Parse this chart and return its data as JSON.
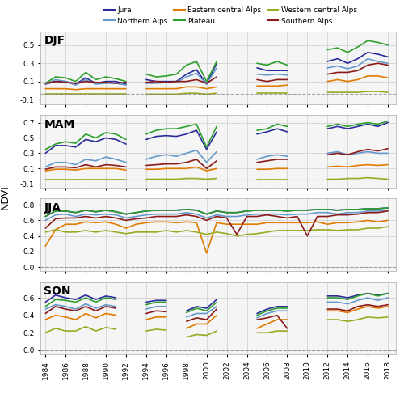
{
  "years": [
    1984,
    1985,
    1986,
    1987,
    1988,
    1989,
    1990,
    1991,
    1992,
    1993,
    1994,
    1995,
    1996,
    1997,
    1998,
    1999,
    2000,
    2001,
    2002,
    2003,
    2004,
    2005,
    2006,
    2007,
    2008,
    2009,
    2010,
    2011,
    2012,
    2013,
    2014,
    2015,
    2016,
    2017,
    2018
  ],
  "colors": {
    "Jura": "#2b2b9b",
    "Northern Alps": "#6699cc",
    "Eastern central Alps": "#e07b00",
    "Plateau": "#2ca02c",
    "Western central Alps": "#9aaa22",
    "Southern Alps": "#8b1a1a"
  },
  "DJF": {
    "Jura": [
      0.07,
      0.1,
      0.1,
      0.07,
      0.14,
      0.08,
      0.1,
      0.1,
      0.07,
      null,
      0.12,
      0.1,
      0.1,
      0.1,
      0.18,
      0.23,
      0.07,
      0.3,
      null,
      null,
      null,
      0.25,
      0.22,
      0.22,
      0.22,
      null,
      0.25,
      null,
      0.32,
      0.35,
      0.3,
      0.35,
      0.42,
      0.4,
      0.37
    ],
    "Northern Alps": [
      0.07,
      0.12,
      0.1,
      0.06,
      0.12,
      0.07,
      0.08,
      0.08,
      0.06,
      null,
      0.08,
      0.08,
      0.09,
      0.09,
      0.15,
      0.19,
      0.07,
      0.25,
      null,
      null,
      null,
      0.18,
      0.17,
      0.18,
      0.17,
      null,
      0.2,
      null,
      0.25,
      0.27,
      0.24,
      0.27,
      0.35,
      0.32,
      0.3
    ],
    "Eastern central Alps": [
      0.02,
      0.02,
      0.02,
      0.01,
      0.02,
      0.02,
      0.02,
      0.02,
      0.02,
      null,
      0.02,
      0.02,
      0.02,
      0.02,
      0.04,
      0.04,
      0.02,
      0.04,
      null,
      null,
      null,
      0.05,
      0.05,
      0.05,
      0.06,
      null,
      0.08,
      null,
      0.1,
      0.12,
      0.1,
      0.12,
      0.16,
      0.16,
      0.14
    ],
    "Plateau": [
      0.08,
      0.15,
      0.14,
      0.1,
      0.2,
      0.12,
      0.15,
      0.13,
      0.1,
      null,
      0.18,
      0.15,
      0.16,
      0.18,
      0.28,
      0.32,
      0.1,
      0.32,
      null,
      null,
      null,
      0.3,
      0.28,
      0.32,
      0.28,
      null,
      0.38,
      null,
      0.45,
      0.47,
      0.42,
      0.48,
      0.55,
      0.53,
      0.5
    ],
    "Western central Alps": [
      -0.04,
      -0.04,
      -0.04,
      -0.04,
      -0.04,
      -0.04,
      -0.04,
      -0.04,
      -0.04,
      null,
      -0.04,
      -0.04,
      -0.04,
      -0.04,
      -0.03,
      -0.03,
      -0.04,
      -0.03,
      null,
      null,
      null,
      -0.03,
      -0.03,
      -0.03,
      -0.03,
      null,
      -0.03,
      null,
      -0.02,
      -0.02,
      -0.02,
      -0.02,
      -0.01,
      -0.01,
      -0.02
    ],
    "Southern Alps": [
      0.08,
      0.1,
      0.09,
      0.08,
      0.1,
      0.09,
      0.09,
      0.08,
      0.09,
      null,
      0.09,
      0.1,
      0.09,
      0.1,
      0.1,
      0.12,
      0.08,
      0.15,
      null,
      null,
      null,
      0.12,
      0.1,
      0.12,
      0.12,
      null,
      0.12,
      null,
      0.18,
      0.2,
      0.2,
      0.22,
      0.28,
      0.3,
      0.28
    ]
  },
  "MAM": {
    "Jura": [
      0.3,
      0.4,
      0.4,
      0.38,
      0.48,
      0.45,
      0.5,
      0.48,
      0.42,
      null,
      0.48,
      0.52,
      0.53,
      0.52,
      0.55,
      0.6,
      0.35,
      0.58,
      null,
      null,
      null,
      0.55,
      0.58,
      0.62,
      0.58,
      null,
      0.65,
      null,
      0.62,
      0.65,
      0.62,
      0.65,
      0.68,
      0.65,
      0.7
    ],
    "Northern Alps": [
      0.12,
      0.18,
      0.18,
      0.15,
      0.22,
      0.2,
      0.25,
      0.22,
      0.18,
      null,
      0.22,
      0.26,
      0.28,
      0.26,
      0.3,
      0.34,
      0.18,
      0.32,
      null,
      null,
      null,
      0.22,
      0.26,
      0.28,
      0.26,
      null,
      0.3,
      null,
      0.3,
      0.32,
      0.28,
      0.3,
      0.32,
      0.3,
      0.3
    ],
    "Eastern central Alps": [
      0.07,
      0.09,
      0.09,
      0.08,
      0.1,
      0.1,
      0.1,
      0.1,
      0.08,
      null,
      0.09,
      0.09,
      0.1,
      0.1,
      0.1,
      0.12,
      0.07,
      0.1,
      null,
      null,
      null,
      0.09,
      0.09,
      0.1,
      0.1,
      null,
      0.1,
      null,
      0.12,
      0.13,
      0.12,
      0.14,
      0.15,
      0.14,
      0.15
    ],
    "Plateau": [
      0.35,
      0.42,
      0.45,
      0.43,
      0.55,
      0.5,
      0.57,
      0.55,
      0.48,
      null,
      0.55,
      0.6,
      0.62,
      0.62,
      0.65,
      0.68,
      0.38,
      0.65,
      null,
      null,
      null,
      0.6,
      0.62,
      0.68,
      0.65,
      null,
      0.7,
      null,
      0.65,
      0.68,
      0.65,
      0.68,
      0.7,
      0.68,
      0.72
    ],
    "Western central Alps": [
      -0.04,
      -0.04,
      -0.04,
      -0.04,
      -0.04,
      -0.04,
      -0.04,
      -0.04,
      -0.04,
      null,
      -0.04,
      -0.04,
      -0.04,
      -0.04,
      -0.03,
      -0.03,
      -0.04,
      -0.03,
      null,
      null,
      null,
      -0.04,
      -0.04,
      -0.04,
      -0.04,
      null,
      -0.04,
      null,
      -0.04,
      -0.04,
      -0.03,
      -0.03,
      -0.02,
      -0.03,
      -0.04
    ],
    "Southern Alps": [
      0.09,
      0.12,
      0.12,
      0.11,
      0.15,
      0.12,
      0.15,
      0.14,
      0.12,
      null,
      0.14,
      0.15,
      0.16,
      0.16,
      0.18,
      0.22,
      0.1,
      0.2,
      null,
      null,
      null,
      0.18,
      0.2,
      0.22,
      0.22,
      null,
      0.28,
      null,
      0.28,
      0.3,
      0.28,
      0.32,
      0.35,
      0.33,
      0.36
    ]
  },
  "JJA": {
    "Jura": [
      0.65,
      0.72,
      0.72,
      0.7,
      0.73,
      0.71,
      0.73,
      0.71,
      0.68,
      0.7,
      0.72,
      0.73,
      0.73,
      0.73,
      0.74,
      0.73,
      0.68,
      0.72,
      0.7,
      0.7,
      0.72,
      0.73,
      0.73,
      0.73,
      0.72,
      0.73,
      0.73,
      0.74,
      0.74,
      0.73,
      0.74,
      0.74,
      0.75,
      0.75,
      0.76
    ],
    "Northern Alps": [
      0.6,
      0.67,
      0.68,
      0.65,
      0.68,
      0.67,
      0.68,
      0.67,
      0.63,
      0.65,
      0.67,
      0.68,
      0.68,
      0.68,
      0.7,
      0.68,
      0.63,
      0.67,
      0.65,
      0.65,
      0.67,
      0.68,
      0.68,
      0.68,
      0.67,
      0.68,
      0.68,
      0.7,
      0.7,
      0.68,
      0.7,
      0.7,
      0.72,
      0.72,
      0.73
    ],
    "Eastern central Alps": [
      0.27,
      0.48,
      0.55,
      0.55,
      0.58,
      0.57,
      0.58,
      0.55,
      0.5,
      0.55,
      0.57,
      0.58,
      0.58,
      0.57,
      0.58,
      0.57,
      0.18,
      0.57,
      0.55,
      0.55,
      0.55,
      0.55,
      0.57,
      0.57,
      0.57,
      0.57,
      0.57,
      0.58,
      0.55,
      0.57,
      0.57,
      0.58,
      0.6,
      0.58,
      0.6
    ],
    "Plateau": [
      0.65,
      0.72,
      0.72,
      0.7,
      0.73,
      0.71,
      0.73,
      0.71,
      0.68,
      0.7,
      0.72,
      0.73,
      0.73,
      0.73,
      0.74,
      0.73,
      0.68,
      0.72,
      0.7,
      0.7,
      0.72,
      0.73,
      0.73,
      0.73,
      0.72,
      0.73,
      0.73,
      0.74,
      0.74,
      0.73,
      0.74,
      0.74,
      0.75,
      0.75,
      0.76
    ],
    "Western central Alps": [
      0.45,
      0.48,
      0.45,
      0.45,
      0.47,
      0.45,
      0.47,
      0.45,
      0.43,
      0.45,
      0.45,
      0.45,
      0.47,
      0.45,
      0.47,
      0.45,
      0.42,
      0.45,
      0.43,
      0.4,
      0.42,
      0.43,
      0.45,
      0.47,
      0.47,
      0.47,
      0.47,
      0.48,
      0.48,
      0.47,
      0.48,
      0.48,
      0.5,
      0.5,
      0.52
    ],
    "Southern Alps": [
      0.5,
      0.62,
      0.63,
      0.63,
      0.65,
      0.63,
      0.65,
      0.63,
      0.6,
      0.62,
      0.63,
      0.65,
      0.65,
      0.65,
      0.67,
      0.65,
      0.6,
      0.65,
      0.63,
      0.42,
      0.65,
      0.65,
      0.67,
      0.65,
      0.63,
      0.65,
      0.4,
      0.65,
      0.65,
      0.67,
      0.67,
      0.68,
      0.7,
      0.7,
      0.72
    ]
  },
  "SON": {
    "Jura": [
      0.55,
      0.63,
      0.6,
      0.58,
      0.63,
      0.58,
      0.62,
      0.6,
      null,
      null,
      0.55,
      0.57,
      0.57,
      null,
      0.45,
      0.5,
      0.48,
      0.58,
      null,
      null,
      null,
      0.42,
      0.47,
      0.5,
      0.5,
      null,
      0.57,
      null,
      0.62,
      0.62,
      0.6,
      0.63,
      0.65,
      0.63,
      0.65
    ],
    "Northern Alps": [
      0.47,
      0.52,
      0.5,
      0.47,
      0.53,
      0.48,
      0.52,
      0.5,
      null,
      null,
      0.47,
      0.5,
      0.5,
      null,
      0.38,
      0.42,
      0.42,
      0.5,
      null,
      null,
      null,
      0.37,
      0.42,
      0.45,
      0.45,
      null,
      0.5,
      null,
      0.55,
      0.55,
      0.53,
      0.57,
      0.6,
      0.57,
      0.6
    ],
    "Eastern central Alps": [
      0.35,
      0.4,
      0.38,
      0.35,
      0.42,
      0.37,
      0.42,
      0.4,
      null,
      null,
      0.35,
      0.38,
      0.38,
      null,
      0.25,
      0.3,
      0.3,
      0.4,
      null,
      null,
      null,
      0.25,
      0.3,
      0.35,
      0.35,
      null,
      0.4,
      null,
      0.45,
      0.45,
      0.43,
      0.47,
      0.5,
      0.48,
      0.5
    ],
    "Plateau": [
      0.5,
      0.58,
      0.57,
      0.55,
      0.6,
      0.55,
      0.6,
      0.58,
      null,
      null,
      0.52,
      0.55,
      0.55,
      null,
      0.43,
      0.48,
      0.45,
      0.55,
      null,
      null,
      null,
      0.4,
      0.45,
      0.48,
      0.48,
      null,
      0.55,
      null,
      0.6,
      0.6,
      0.58,
      0.62,
      0.65,
      0.62,
      0.65
    ],
    "Western central Alps": [
      0.2,
      0.25,
      0.22,
      0.22,
      0.27,
      0.22,
      0.26,
      0.24,
      null,
      null,
      0.22,
      0.24,
      0.23,
      null,
      0.15,
      0.18,
      0.17,
      0.22,
      null,
      null,
      null,
      0.2,
      0.2,
      0.22,
      0.22,
      null,
      0.28,
      null,
      0.35,
      0.35,
      0.33,
      0.35,
      0.38,
      0.37,
      0.38
    ],
    "Southern Alps": [
      0.42,
      0.5,
      0.47,
      0.45,
      0.5,
      0.45,
      0.5,
      0.48,
      null,
      null,
      0.42,
      0.45,
      0.44,
      null,
      0.33,
      0.37,
      0.35,
      0.47,
      null,
      null,
      null,
      0.35,
      0.37,
      0.4,
      0.25,
      null,
      0.42,
      null,
      0.47,
      0.47,
      0.45,
      0.5,
      0.52,
      0.5,
      0.52
    ]
  },
  "ylims": {
    "DJF": [
      -0.15,
      0.65
    ],
    "MAM": [
      -0.15,
      0.8
    ],
    "JJA": [
      -0.05,
      0.88
    ],
    "SON": [
      -0.05,
      0.78
    ]
  },
  "yticks": {
    "DJF": [
      -0.1,
      0.1,
      0.3,
      0.5
    ],
    "MAM": [
      -0.1,
      0.1,
      0.3,
      0.5,
      0.7
    ],
    "JJA": [
      0.0,
      0.2,
      0.4,
      0.6,
      0.8
    ],
    "SON": [
      0.0,
      0.2,
      0.4,
      0.6
    ]
  },
  "dashed_line": {
    "DJF": -0.04,
    "MAM": -0.04,
    "JJA": 0.0,
    "SON": 0.0
  },
  "seasons": [
    "DJF",
    "MAM",
    "JJA",
    "SON"
  ],
  "series_order": [
    "Jura",
    "Northern Alps",
    "Eastern central Alps",
    "Plateau",
    "Western central Alps",
    "Southern Alps"
  ],
  "background_color": "#f5f5f5",
  "grid_color": "#cccccc",
  "ylabel": "NDVI",
  "xtick_years": [
    1984,
    1986,
    1988,
    1990,
    1992,
    1994,
    1996,
    1998,
    2000,
    2002,
    2004,
    2006,
    2008,
    2010,
    2012,
    2014,
    2016,
    2018
  ]
}
